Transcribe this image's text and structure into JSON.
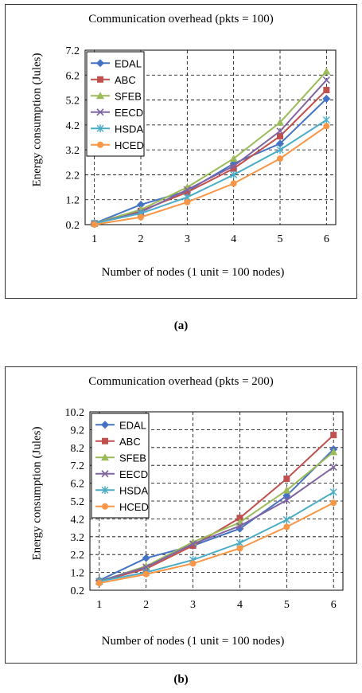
{
  "captions": {
    "a": "(a)",
    "b": "(b)"
  },
  "chart_data": [
    {
      "type": "line",
      "title": "Communication overhead (pkts = 100)",
      "xlabel": "Number of nodes (1 unit = 100 nodes)",
      "ylabel": "Energy consumption (Jules)",
      "x": [
        1,
        2,
        3,
        4,
        5,
        6
      ],
      "yticks": [
        0.2,
        1.2,
        2.2,
        3.2,
        4.2,
        5.2,
        6.2,
        7.2
      ],
      "ylim": [
        0.2,
        7.2
      ],
      "grid": true,
      "legend_position": "top-left",
      "series": [
        {
          "name": "EDAL",
          "color": "#4472C4",
          "marker": "diamond",
          "values": [
            0.25,
            1.0,
            1.55,
            2.65,
            3.45,
            5.25
          ]
        },
        {
          "name": "ABC",
          "color": "#C0504D",
          "marker": "square",
          "values": [
            0.25,
            0.75,
            1.5,
            2.45,
            3.75,
            5.6
          ]
        },
        {
          "name": "SFEB",
          "color": "#9BBB59",
          "marker": "triangle",
          "values": [
            0.25,
            0.8,
            1.7,
            2.85,
            4.3,
            6.35
          ]
        },
        {
          "name": "EECD",
          "color": "#8064A2",
          "marker": "x",
          "values": [
            0.25,
            0.7,
            1.6,
            2.55,
            3.95,
            6.0
          ]
        },
        {
          "name": "HSDA",
          "color": "#4BACC6",
          "marker": "star",
          "values": [
            0.25,
            0.65,
            1.3,
            2.2,
            3.2,
            4.4
          ]
        },
        {
          "name": "HCED",
          "color": "#F79646",
          "marker": "circle",
          "values": [
            0.2,
            0.5,
            1.1,
            1.85,
            2.85,
            4.15
          ]
        }
      ]
    },
    {
      "type": "line",
      "title": "Communication overhead (pkts = 200)",
      "xlabel": "Number of nodes (1 unit = 100 nodes)",
      "ylabel": "Energy consumption (Jules)",
      "x": [
        1,
        2,
        3,
        4,
        5,
        6
      ],
      "yticks": [
        0.2,
        1.2,
        2.2,
        3.2,
        4.2,
        5.2,
        6.2,
        7.2,
        8.2,
        9.2,
        10.2
      ],
      "ylim": [
        0.2,
        10.2
      ],
      "grid": true,
      "legend_position": "top-left",
      "series": [
        {
          "name": "EDAL",
          "color": "#4472C4",
          "marker": "diamond",
          "values": [
            0.75,
            2.0,
            2.7,
            3.65,
            5.5,
            8.1
          ]
        },
        {
          "name": "ABC",
          "color": "#C0504D",
          "marker": "square",
          "values": [
            0.7,
            1.4,
            2.7,
            4.25,
            6.45,
            8.9
          ]
        },
        {
          "name": "SFEB",
          "color": "#9BBB59",
          "marker": "triangle",
          "values": [
            0.7,
            1.55,
            2.9,
            4.0,
            5.8,
            7.95
          ]
        },
        {
          "name": "EECD",
          "color": "#8064A2",
          "marker": "x",
          "values": [
            0.7,
            1.5,
            2.8,
            3.8,
            5.25,
            7.1
          ]
        },
        {
          "name": "HSDA",
          "color": "#4BACC6",
          "marker": "star",
          "values": [
            0.7,
            1.2,
            1.9,
            2.85,
            4.15,
            5.7
          ]
        },
        {
          "name": "HCED",
          "color": "#F79646",
          "marker": "circle",
          "values": [
            0.6,
            1.1,
            1.7,
            2.55,
            3.75,
            5.1
          ]
        }
      ]
    }
  ]
}
